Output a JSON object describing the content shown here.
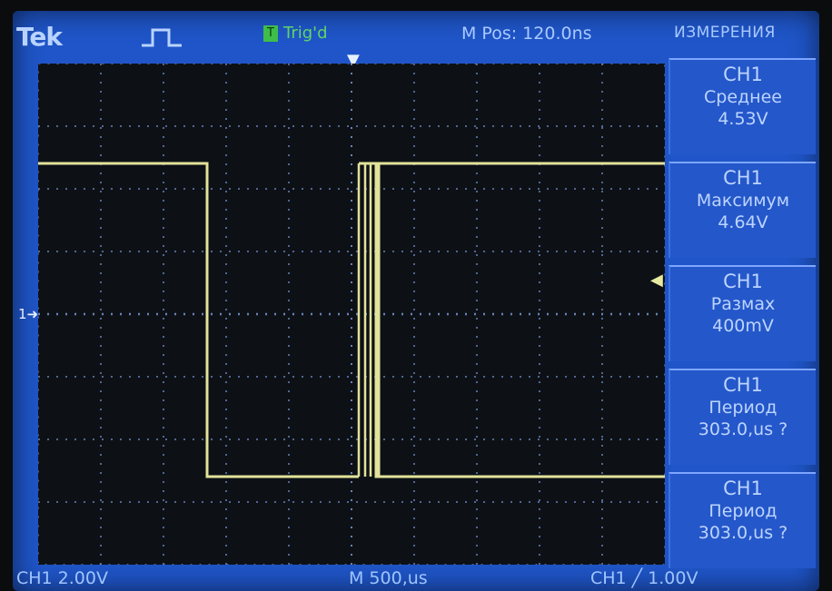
{
  "header": {
    "brand": "Tek",
    "run_icon": "square-wave-run-icon",
    "trigger_badge": "T",
    "trigger_state": "Trig'd",
    "m_pos": "M Pos: 120.0ns",
    "menu_title": "ИЗМЕРЕНИЯ"
  },
  "graticule": {
    "divisions_x": 10,
    "divisions_y": 8,
    "ground_marker": "1",
    "colors": {
      "background": "#0d1116",
      "grid": "#8fb3ff",
      "trace": "#e3e29a"
    }
  },
  "measurements": [
    {
      "channel": "CH1",
      "name": "Среднее",
      "value": "4.53V"
    },
    {
      "channel": "CH1",
      "name": "Максимум",
      "value": "4.64V"
    },
    {
      "channel": "CH1",
      "name": "Размах",
      "value": "400mV"
    },
    {
      "channel": "CH1",
      "name": "Период",
      "value": "303.0,us ?"
    },
    {
      "channel": "CH1",
      "name": "Период",
      "value": "303.0,us ?"
    }
  ],
  "footer": {
    "ch1_scale": "CH1  2.00V",
    "timebase": "M 500,us",
    "trigger": "CH1 ╱ 1.00V"
  }
}
